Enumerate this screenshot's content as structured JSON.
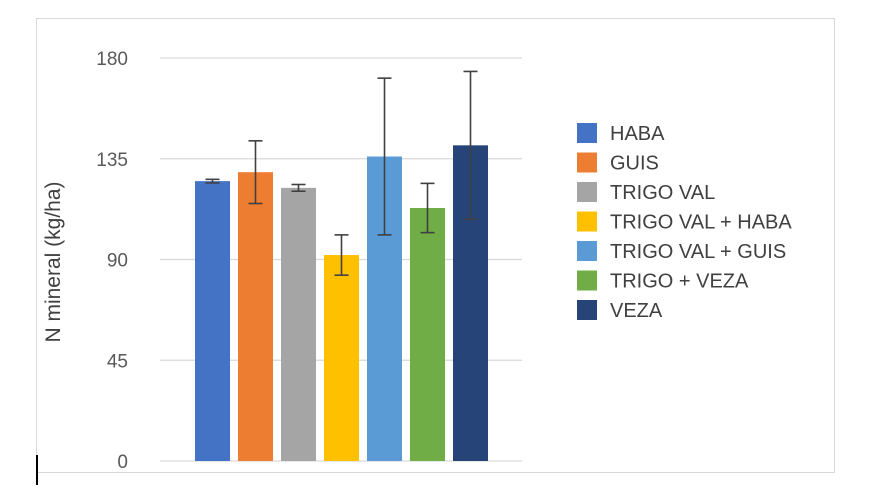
{
  "chart_data": {
    "type": "bar",
    "title": "",
    "xlabel": "",
    "ylabel": "N mineral (kg/ha)",
    "ylim": [
      0,
      180
    ],
    "yticks": [
      0,
      45,
      90,
      135,
      180
    ],
    "grid": true,
    "legend_position": "right",
    "categories": [
      "HABA",
      "GUIS",
      "TRIGO VAL",
      "TRIGO VAL + HABA",
      "TRIGO VAL + GUIS",
      "TRIGO + VEZA",
      "VEZA"
    ],
    "values": [
      125,
      129,
      122,
      92,
      136,
      113,
      141
    ],
    "errors": [
      0.8,
      14,
      1.5,
      9,
      35,
      11,
      33
    ],
    "colors": [
      "#4472C4",
      "#ED7D31",
      "#A5A5A5",
      "#FFC000",
      "#5B9BD5",
      "#70AD47",
      "#264478"
    ]
  }
}
